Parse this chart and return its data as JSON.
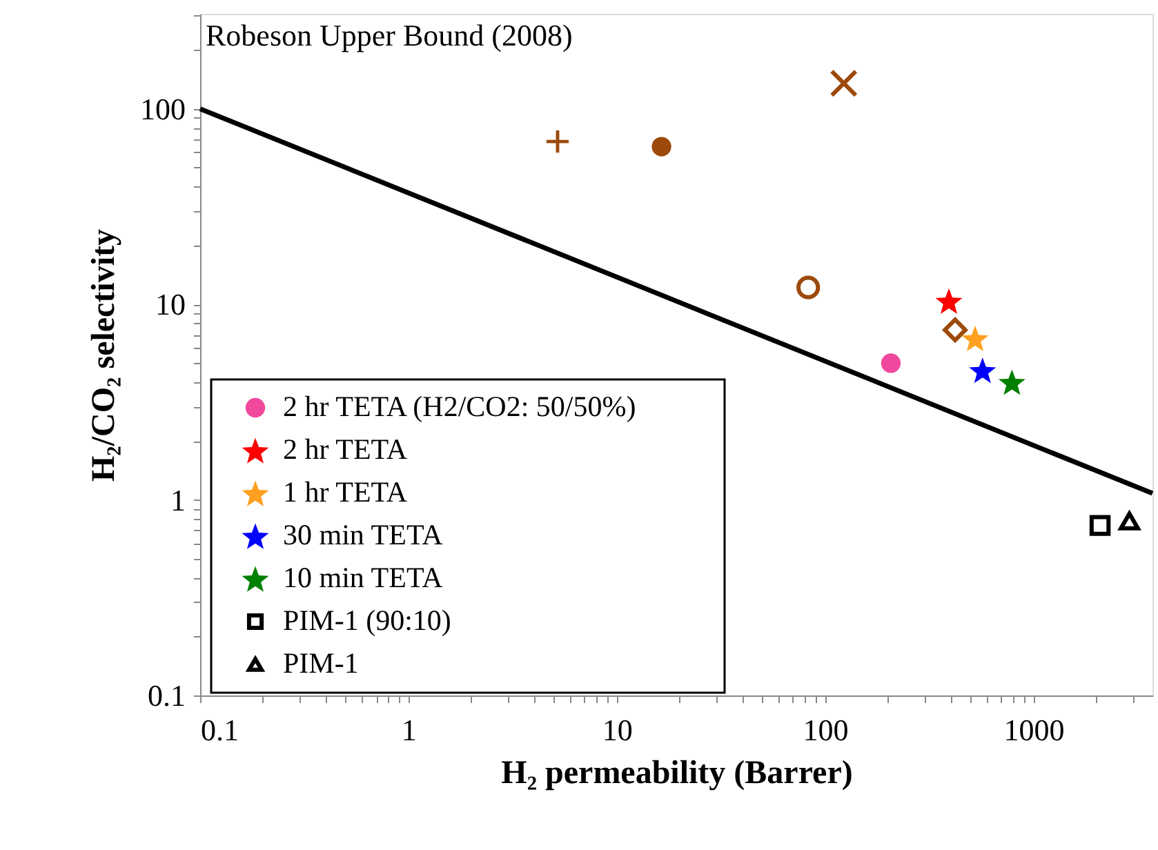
{
  "chart_data": {
    "type": "scatter",
    "xlabel": "H₂ permeability (Barrer)",
    "ylabel": "H₂/CO₂ selectivity",
    "annotations": [
      "Robeson Upper Bound (2008)"
    ],
    "log": "xy",
    "grid": false,
    "legend": "bottom left",
    "xlim": [
      0.1,
      3730
    ],
    "ylim": [
      0.1,
      306
    ],
    "xticks": [
      0.1,
      {
        "value": 0.2,
        "label": null
      },
      {
        "value": 0.3,
        "label": null
      },
      {
        "value": 0.4,
        "label": null
      },
      {
        "value": 0.5,
        "label": null
      },
      {
        "value": 0.6,
        "label": null
      },
      {
        "value": 0.7,
        "label": null
      },
      {
        "value": 0.8,
        "label": null
      },
      {
        "value": 0.9,
        "label": null
      },
      1,
      {
        "value": 2,
        "label": null
      },
      {
        "value": 3,
        "label": null
      },
      {
        "value": 4,
        "label": null
      },
      {
        "value": 5,
        "label": null
      },
      {
        "value": 6,
        "label": null
      },
      {
        "value": 7,
        "label": null
      },
      {
        "value": 8,
        "label": null
      },
      {
        "value": 9,
        "label": null
      },
      10,
      {
        "value": 20,
        "label": null
      },
      {
        "value": 30,
        "label": null
      },
      {
        "value": 40,
        "label": null
      },
      {
        "value": 50,
        "label": null
      },
      {
        "value": 60,
        "label": null
      },
      {
        "value": 70,
        "label": null
      },
      {
        "value": 80,
        "label": null
      },
      {
        "value": 90,
        "label": null
      },
      100,
      {
        "value": 200,
        "label": null
      },
      {
        "value": 300,
        "label": null
      },
      {
        "value": 400,
        "label": null
      },
      {
        "value": 500,
        "label": null
      },
      {
        "value": 600,
        "label": null
      },
      {
        "value": 700,
        "label": null
      },
      {
        "value": 800,
        "label": null
      },
      {
        "value": 900,
        "label": null
      },
      1000,
      {
        "value": 2000,
        "label": null
      },
      {
        "value": 3000,
        "label": null
      }
    ],
    "yticks": [
      0.1,
      {
        "value": 0.2,
        "label": null
      },
      {
        "value": 0.3,
        "label": null
      },
      {
        "value": 0.4,
        "label": null
      },
      {
        "value": 0.5,
        "label": null
      },
      {
        "value": 0.6,
        "label": null
      },
      {
        "value": 0.7,
        "label": null
      },
      {
        "value": 0.8,
        "label": null
      },
      {
        "value": 0.9,
        "label": null
      },
      1,
      {
        "value": 2,
        "label": null
      },
      {
        "value": 3,
        "label": null
      },
      {
        "value": 4,
        "label": null
      },
      {
        "value": 5,
        "label": null
      },
      {
        "value": 6,
        "label": null
      },
      {
        "value": 7,
        "label": null
      },
      {
        "value": 8,
        "label": null
      },
      {
        "value": 9,
        "label": null
      },
      10,
      {
        "value": 20,
        "label": null
      },
      {
        "value": 30,
        "label": null
      },
      {
        "value": 40,
        "label": null
      },
      {
        "value": 50,
        "label": null
      },
      {
        "value": 60,
        "label": null
      },
      {
        "value": 70,
        "label": null
      },
      {
        "value": 80,
        "label": null
      },
      {
        "value": 90,
        "label": null
      },
      100,
      {
        "value": 200,
        "label": null
      },
      {
        "value": 300,
        "label": null
      }
    ],
    "series": [
      {
        "type": "line",
        "color": "#000000",
        "x": [
          0.1,
          3730
        ],
        "values": [
          100,
          1.08
        ],
        "line_style": "solid"
      },
      {
        "color": "#9c4a0c",
        "marker": "cross",
        "x": [
          5.2
        ],
        "values": [
          68
        ]
      },
      {
        "color": "#9c4a0c",
        "marker": "circle",
        "x": [
          16.4
        ],
        "values": [
          64
        ]
      },
      {
        "color": "#9c4a0c",
        "marker": "x",
        "x": [
          123
        ],
        "values": [
          135
        ]
      },
      {
        "color": "#9c4a0c",
        "marker": "circle-open",
        "x": [
          83
        ],
        "values": [
          12.2
        ]
      },
      {
        "color": "#9c4a0c",
        "marker": "diamond",
        "x": [
          421
        ],
        "values": [
          7.4
        ]
      },
      {
        "name": "2 hr TETA (H2/CO2: 50/50%)",
        "color": "#f0489c",
        "marker": "circle",
        "x": [
          207
        ],
        "values": [
          5.0
        ]
      },
      {
        "name": "2 hr TETA",
        "color": "#ff0000",
        "marker": "star",
        "x": [
          393
        ],
        "values": [
          10.4
        ]
      },
      {
        "name": "1 hr TETA",
        "color": "#ffa020",
        "marker": "star",
        "x": [
          525
        ],
        "values": [
          6.7
        ]
      },
      {
        "name": "30 min TETA",
        "color": "#0000ff",
        "marker": "star",
        "x": [
          570
        ],
        "values": [
          4.6
        ]
      },
      {
        "name": "10 min TETA",
        "color": "#008000",
        "marker": "star",
        "x": [
          789
        ],
        "values": [
          4.0
        ]
      },
      {
        "name": "PIM-1 (90:10)",
        "color": "#000000",
        "marker": "square",
        "x": [
          2090
        ],
        "values": [
          0.74
        ]
      },
      {
        "name": "PIM-1",
        "color": "#000000",
        "marker": "triangle",
        "x": [
          2890
        ],
        "values": [
          0.78
        ]
      }
    ]
  }
}
